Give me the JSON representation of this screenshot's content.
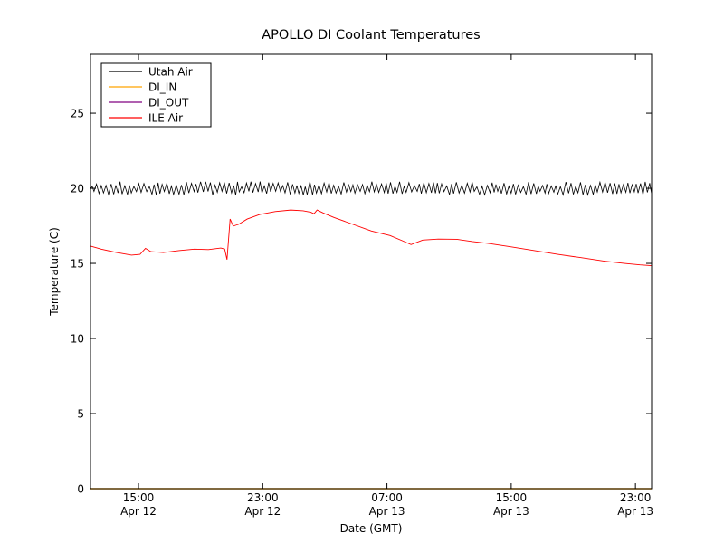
{
  "chart_data": {
    "type": "line",
    "title": "APOLLO DI Coolant Temperatures",
    "xlabel": "Date (GMT)",
    "ylabel": "Temperature (C)",
    "x_unit": "hours since Apr 12 00:00 GMT",
    "xlim": [
      11.91,
      48.04
    ],
    "ylim": [
      0,
      28.92
    ],
    "grid": false,
    "legend_position": "upper left",
    "y_ticks": [
      0,
      5,
      10,
      15,
      20,
      25
    ],
    "x_ticks": [
      {
        "value": 15,
        "time": "15:00",
        "date": "Apr 12"
      },
      {
        "value": 23,
        "time": "23:00",
        "date": "Apr 12"
      },
      {
        "value": 31,
        "time": "07:00",
        "date": "Apr 13"
      },
      {
        "value": 39,
        "time": "15:00",
        "date": "Apr 13"
      },
      {
        "value": 47,
        "time": "23:00",
        "date": "Apr 13"
      }
    ],
    "series": [
      {
        "name": "Utah Air",
        "color": "#000000",
        "width": 0.8,
        "style": "zigzag",
        "mean": 19.95,
        "peak_range": [
          20.1,
          20.45
        ],
        "trough_range": [
          19.55,
          19.8
        ],
        "period_hours": 0.28,
        "seed": 7,
        "description": "rapid sawtooth oscillation around 20 C across full time range"
      },
      {
        "name": "DI_IN",
        "color": "#ffa500",
        "width": 1.6,
        "points": [
          [
            11.91,
            0
          ],
          [
            48.04,
            0
          ]
        ]
      },
      {
        "name": "DI_OUT",
        "color": "#800080",
        "width": 0.9,
        "points": [
          [
            11.91,
            0
          ],
          [
            48.04,
            0
          ]
        ]
      },
      {
        "name": "ILE Air",
        "color": "#ff0000",
        "width": 0.9,
        "points": [
          [
            11.91,
            16.15
          ],
          [
            12.6,
            15.95
          ],
          [
            13.6,
            15.72
          ],
          [
            14.55,
            15.55
          ],
          [
            15.1,
            15.6
          ],
          [
            15.45,
            16.0
          ],
          [
            15.8,
            15.78
          ],
          [
            16.6,
            15.72
          ],
          [
            17.6,
            15.85
          ],
          [
            18.6,
            15.95
          ],
          [
            19.5,
            15.92
          ],
          [
            20.3,
            16.02
          ],
          [
            20.55,
            15.95
          ],
          [
            20.7,
            15.25
          ],
          [
            20.9,
            17.95
          ],
          [
            21.1,
            17.48
          ],
          [
            21.45,
            17.6
          ],
          [
            22.0,
            17.95
          ],
          [
            22.8,
            18.25
          ],
          [
            23.8,
            18.45
          ],
          [
            24.8,
            18.55
          ],
          [
            25.6,
            18.5
          ],
          [
            26.1,
            18.4
          ],
          [
            26.3,
            18.3
          ],
          [
            26.5,
            18.55
          ],
          [
            26.9,
            18.35
          ],
          [
            27.6,
            18.05
          ],
          [
            28.8,
            17.6
          ],
          [
            30.0,
            17.15
          ],
          [
            31.2,
            16.85
          ],
          [
            32.0,
            16.5
          ],
          [
            32.55,
            16.25
          ],
          [
            33.3,
            16.55
          ],
          [
            34.3,
            16.62
          ],
          [
            35.5,
            16.6
          ],
          [
            36.5,
            16.45
          ],
          [
            37.5,
            16.33
          ],
          [
            39.0,
            16.1
          ],
          [
            40.5,
            15.85
          ],
          [
            42.0,
            15.6
          ],
          [
            43.5,
            15.38
          ],
          [
            45.0,
            15.15
          ],
          [
            46.3,
            15.0
          ],
          [
            47.3,
            14.9
          ],
          [
            48.04,
            14.85
          ]
        ]
      }
    ]
  },
  "legend": {
    "entries": [
      {
        "label": "Utah Air",
        "color": "#000000"
      },
      {
        "label": "DI_IN",
        "color": "#ffa500"
      },
      {
        "label": "DI_OUT",
        "color": "#800080"
      },
      {
        "label": "ILE Air",
        "color": "#ff0000"
      }
    ]
  }
}
